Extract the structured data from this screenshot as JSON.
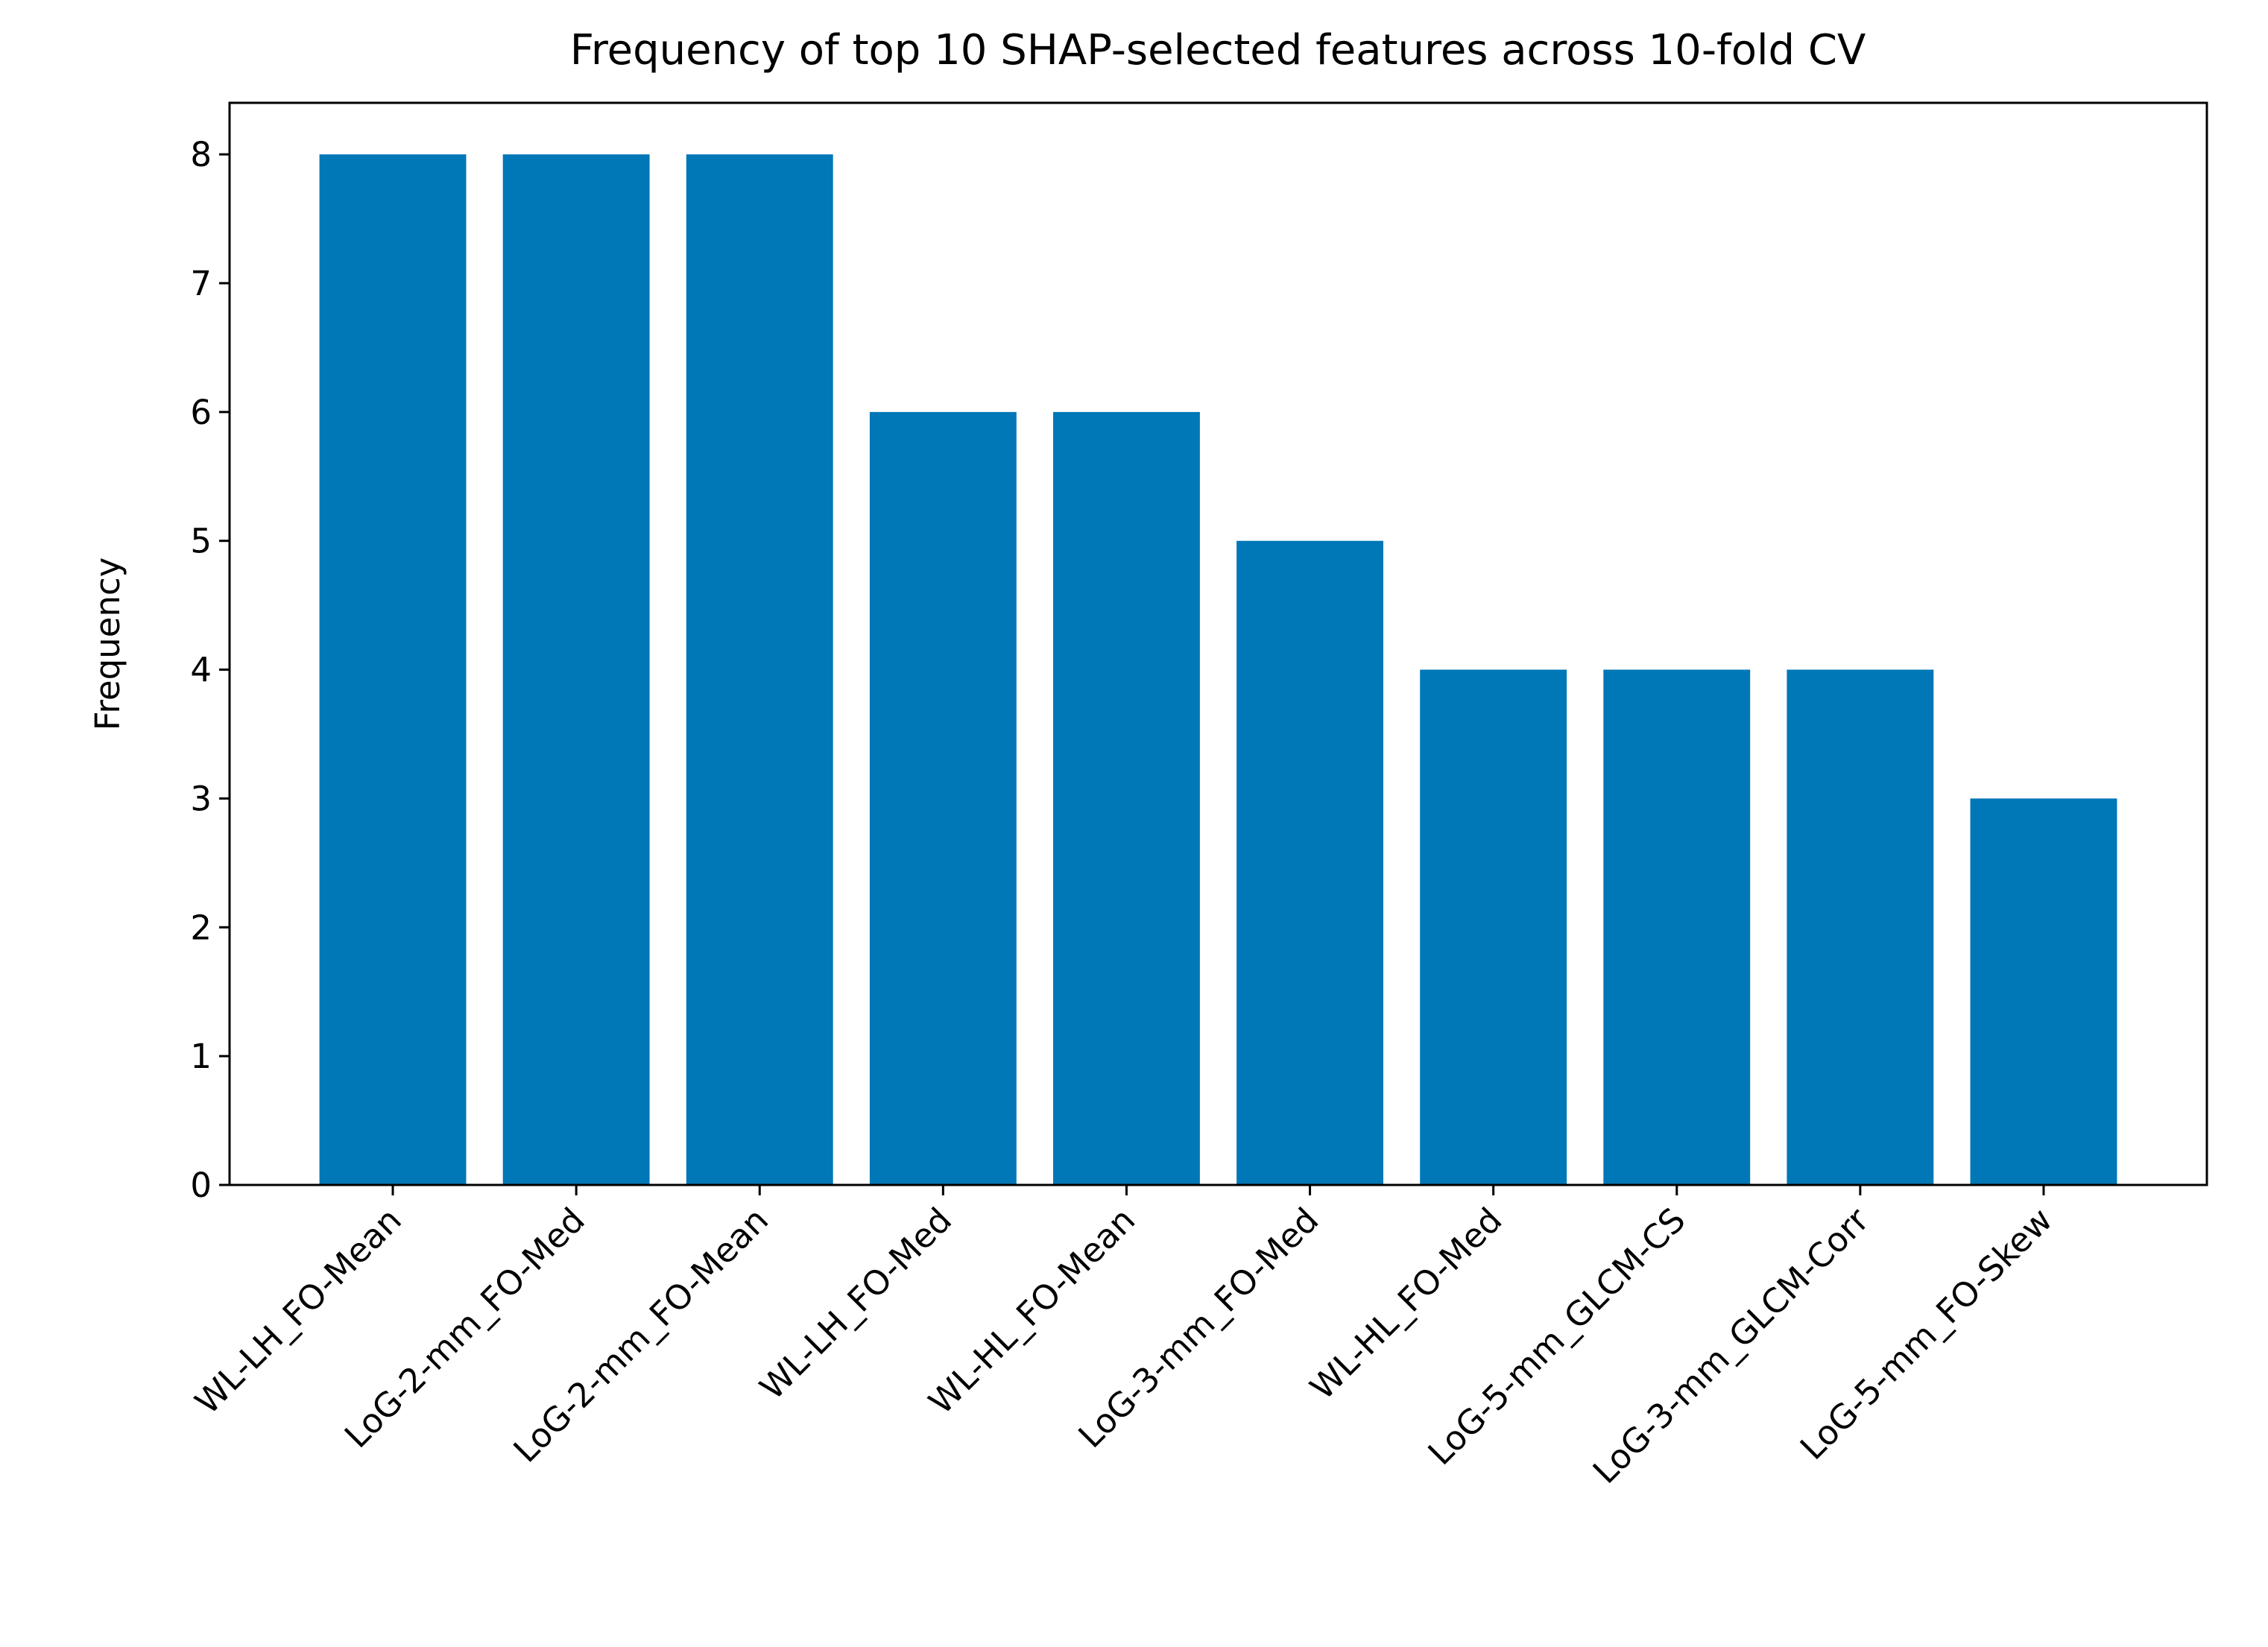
{
  "chart_data": {
    "type": "bar",
    "title": "Frequency of top 10 SHAP-selected features across 10-fold CV",
    "y_label": "Frequency",
    "categories": [
      "WL-LH_FO-Mean",
      "LoG-2-mm_FO-Med",
      "LoG-2-mm_FO-Mean",
      "WL-LH_FO-Med",
      "WL-HL_FO-Mean",
      "LoG-3-mm_FO-Med",
      "WL-HL_FO-Med",
      "LoG-5-mm_GLCM-CS",
      "LoG-3-mm_GLCM-Corr",
      "LoG-5-mm_FO-Skew"
    ],
    "values": [
      8,
      8,
      8,
      6,
      6,
      5,
      4,
      4,
      4,
      3
    ],
    "color": "#0077b6",
    "ylim": [
      0,
      8.4
    ],
    "yticks": [
      0,
      1,
      2,
      3,
      4,
      5,
      6,
      7,
      8
    ],
    "grid": false
  }
}
